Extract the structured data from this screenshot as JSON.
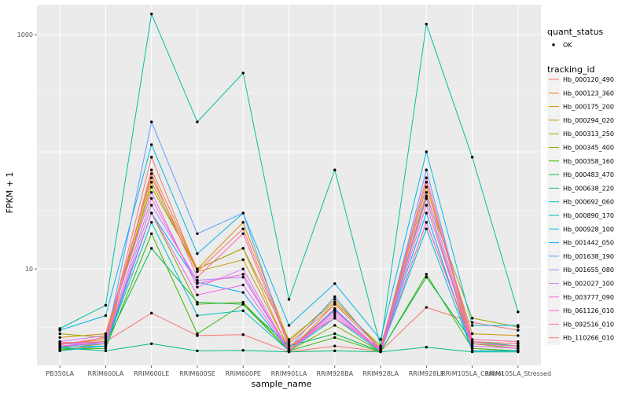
{
  "chart_data": {
    "type": "line",
    "xlabel": "sample_name",
    "ylabel": "FPKM + 1",
    "y_scale": "log10",
    "ylim": [
      1.5,
      1800
    ],
    "y_ticks": [
      10,
      1000
    ],
    "y_tick_labels": [
      "10",
      "1000"
    ],
    "grid": true,
    "legend_position": "right",
    "categories": [
      "PB350LA",
      "RRIM600LA",
      "RRIM600LE",
      "RRIM600SE",
      "RRIM600PE",
      "RRIM901LA",
      "RRIM928BA",
      "RRIM928LA",
      "RRIM928LE",
      "RRIM105LA_Control",
      "RRIM105LA_Stressed"
    ],
    "point_legend": {
      "title": "quant_status",
      "entries": [
        "OK"
      ]
    },
    "legend_title": "tracking_id",
    "series": [
      {
        "name": "Hb_000120_490",
        "color": "#F8766D",
        "values": [
          2.15,
          2.4,
          4.2,
          2.7,
          2.75,
          1.96,
          2.2,
          1.98,
          4.7,
          3.5,
          3.0
        ]
      },
      {
        "name": "Hb_000123_360",
        "color": "#EA8331",
        "values": [
          2.05,
          2.2,
          70,
          10,
          15,
          2.0,
          5.0,
          2.1,
          40,
          2.1,
          2.0
        ]
      },
      {
        "name": "Hb_000175_200",
        "color": "#D89000",
        "values": [
          2.6,
          2.8,
          60,
          10,
          25,
          2.4,
          5.5,
          2.1,
          50,
          2.8,
          2.7
        ]
      },
      {
        "name": "Hb_000294_020",
        "color": "#C09B00",
        "values": [
          2.3,
          2.5,
          55,
          9.5,
          12,
          2.1,
          4.5,
          2.0,
          40,
          2.3,
          2.2
        ]
      },
      {
        "name": "Hb_000313_250",
        "color": "#A3A500",
        "values": [
          2.8,
          2.6,
          50,
          10,
          15,
          2.5,
          5.2,
          2.2,
          42,
          3.8,
          3.2
        ]
      },
      {
        "name": "Hb_000345_400",
        "color": "#7CAE00",
        "values": [
          2.1,
          2.3,
          30,
          5.0,
          5.2,
          2.0,
          3.3,
          1.98,
          25,
          2.3,
          2.1
        ]
      },
      {
        "name": "Hb_000358_160",
        "color": "#39B600",
        "values": [
          2.05,
          2.1,
          20,
          2.8,
          5.0,
          2.0,
          2.6,
          1.96,
          9.0,
          2.1,
          2.0
        ]
      },
      {
        "name": "Hb_000483_470",
        "color": "#00BB4E",
        "values": [
          2.2,
          2.3,
          15,
          5.2,
          5.0,
          2.2,
          2.8,
          1.98,
          8.5,
          2.4,
          2.2
        ]
      },
      {
        "name": "Hb_000638_220",
        "color": "#00BF7D",
        "values": [
          2.12,
          2.0,
          2.3,
          2.0,
          2.02,
          1.96,
          2.0,
          1.96,
          2.15,
          1.96,
          1.96
        ]
      },
      {
        "name": "Hb_000692_060",
        "color": "#00C1A3",
        "values": [
          3.1,
          4.9,
          1500,
          180,
          470,
          5.5,
          70,
          2.2,
          1230,
          90,
          4.3
        ]
      },
      {
        "name": "Hb_000890_170",
        "color": "#00BFC4",
        "values": [
          2.0,
          2.2,
          25,
          4.0,
          4.4,
          2.0,
          3.8,
          1.97,
          22,
          2.0,
          2.0
        ]
      },
      {
        "name": "Hb_000928_100",
        "color": "#00B9E3",
        "values": [
          3.0,
          4.0,
          115,
          13.5,
          30,
          3.3,
          7.5,
          2.5,
          100,
          3.3,
          3.3
        ]
      },
      {
        "name": "Hb_001442_050",
        "color": "#00ADFA",
        "values": [
          2.15,
          2.2,
          30,
          7.7,
          6.3,
          2.0,
          4.5,
          2.0,
          30,
          2.0,
          2.0
        ]
      },
      {
        "name": "Hb_001638_190",
        "color": "#619CFF",
        "values": [
          2.3,
          2.3,
          180,
          20,
          30,
          2.1,
          5.8,
          2.0,
          70,
          2.3,
          2.2
        ]
      },
      {
        "name": "Hb_001655_080",
        "color": "#AE87FF",
        "values": [
          2.2,
          2.3,
          35,
          8.0,
          8.5,
          2.0,
          4.6,
          2.0,
          40,
          2.2,
          2.1
        ]
      },
      {
        "name": "Hb_002027_100",
        "color": "#DB72FB",
        "values": [
          2.4,
          2.7,
          45,
          7.0,
          10,
          2.0,
          4.0,
          2.0,
          45,
          2.4,
          2.3
        ]
      },
      {
        "name": "Hb_003777_090",
        "color": "#F564E3",
        "values": [
          2.2,
          2.4,
          30,
          6.0,
          7.3,
          2.0,
          4.2,
          1.98,
          25,
          2.2,
          2.1
        ]
      },
      {
        "name": "Hb_061126_010",
        "color": "#FF61C3",
        "values": [
          2.3,
          2.4,
          40,
          7.5,
          9.0,
          2.0,
          4.4,
          2.0,
          35,
          2.3,
          2.2
        ]
      },
      {
        "name": "Hb_092516_010",
        "color": "#FF67A4",
        "values": [
          2.25,
          2.6,
          65,
          8.5,
          20,
          2.2,
          3.8,
          2.1,
          60,
          2.5,
          2.4
        ]
      },
      {
        "name": "Hb_110266_010",
        "color": "#F8766D",
        "values": [
          2.35,
          2.4,
          90,
          9.5,
          22,
          2.3,
          5.0,
          2.1,
          55,
          2.4,
          2.3
        ]
      }
    ]
  }
}
